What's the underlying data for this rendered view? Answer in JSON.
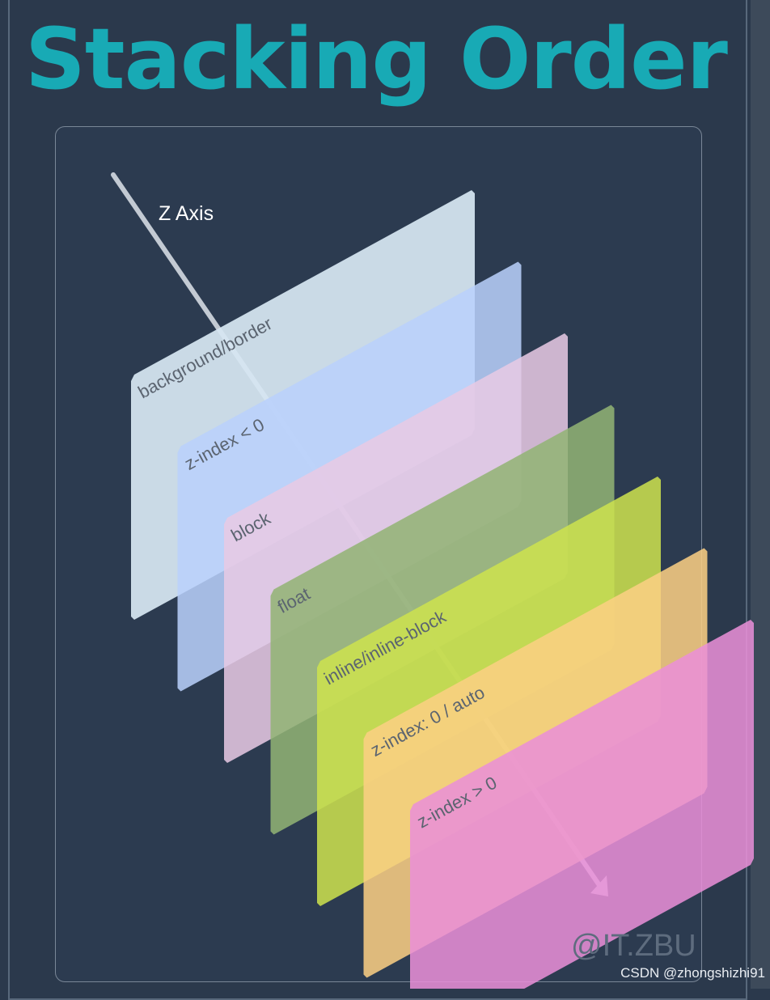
{
  "title": "Stacking Order",
  "axis_label": "Z Axis",
  "layers": [
    {
      "label": "background/border",
      "color": "#d6e6f2"
    },
    {
      "label": "z-index < 0",
      "color": "#b9d1fb"
    },
    {
      "label": "block",
      "color": "#e8c9e4"
    },
    {
      "label": "float",
      "color": "#91b375"
    },
    {
      "label": "inline/inline-block",
      "color": "#cde24e"
    },
    {
      "label": "z-index: 0 / auto",
      "color": "#fccf84"
    },
    {
      "label": "z-index > 0",
      "color": "#ea8fd8"
    }
  ],
  "colors": {
    "title": "#18aab5",
    "background": "#2b394c",
    "axis": "#c3cad3",
    "layer_text": "#5b6470"
  },
  "watermark": "@IT.ZBU",
  "credit": "CSDN @zhongshizhi91"
}
